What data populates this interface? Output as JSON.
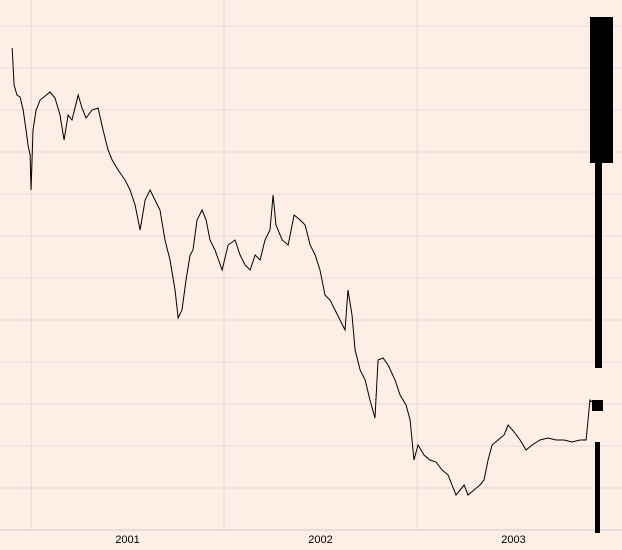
{
  "chart_data": {
    "type": "line",
    "x": [
      2000.902,
      2000.912,
      2000.927,
      2000.943,
      2000.959,
      2000.974,
      2000.984,
      2000.995,
      2001.0,
      2001.01,
      2001.026,
      2001.047,
      2001.073,
      2001.098,
      2001.124,
      2001.15,
      2001.171,
      2001.192,
      2001.212,
      2001.244,
      2001.264,
      2001.285,
      2001.316,
      2001.347,
      2001.373,
      2001.399,
      2001.42,
      2001.451,
      2001.487,
      2001.513,
      2001.539,
      2001.565,
      2001.591,
      2001.617,
      2001.642,
      2001.668,
      2001.694,
      2001.72,
      2001.746,
      2001.762,
      2001.782,
      2001.803,
      2001.824,
      2001.839,
      2001.86,
      2001.886,
      2001.907,
      2001.927,
      2001.953,
      2001.99,
      2002.021,
      2002.057,
      2002.083,
      2002.109,
      2002.135,
      2002.161,
      2002.187,
      2002.212,
      2002.238,
      2002.254,
      2002.269,
      2002.301,
      2002.332,
      2002.363,
      2002.394,
      2002.42,
      2002.446,
      2002.472,
      2002.497,
      2002.523,
      2002.549,
      2002.575,
      2002.601,
      2002.627,
      2002.642,
      2002.663,
      2002.679,
      2002.705,
      2002.731,
      2002.756,
      2002.782,
      2002.798,
      2002.824,
      2002.85,
      2002.886,
      2002.912,
      2002.943,
      2002.964,
      2002.984,
      2003.005,
      2003.036,
      2003.067,
      2003.098,
      2003.13,
      2003.161,
      2003.181,
      2003.202,
      2003.223,
      2003.244,
      2003.264,
      2003.295,
      2003.326,
      2003.347,
      2003.368,
      2003.389,
      2003.42,
      2003.451,
      2003.472,
      2003.503,
      2003.534,
      2003.565,
      2003.596,
      2003.637,
      2003.679,
      2003.72,
      2003.762,
      2003.803,
      2003.845,
      2003.876,
      2003.896,
      2003.907
    ],
    "series": [
      {
        "color": "#000000",
        "values": [
          482,
          445,
          435,
          433,
          420,
          400,
          385,
          375,
          340,
          400,
          420,
          430,
          434,
          438,
          432,
          415,
          390,
          415,
          410,
          435,
          422,
          412,
          420,
          422,
          400,
          380,
          370,
          360,
          350,
          340,
          325,
          300,
          330,
          340,
          330,
          320,
          290,
          270,
          240,
          212,
          220,
          250,
          275,
          280,
          310,
          320,
          310,
          290,
          280,
          260,
          285,
          290,
          275,
          265,
          260,
          275,
          270,
          290,
          300,
          335,
          305,
          290,
          285,
          315,
          310,
          305,
          285,
          275,
          260,
          235,
          230,
          220,
          210,
          200,
          240,
          215,
          180,
          160,
          150,
          130,
          112,
          170,
          172,
          165,
          150,
          135,
          125,
          110,
          70,
          85,
          75,
          70,
          68,
          60,
          55,
          45,
          35,
          40,
          45,
          35,
          40,
          45,
          50,
          70,
          85,
          90,
          95,
          105,
          98,
          90,
          80,
          85,
          90,
          92,
          90,
          90,
          88,
          90,
          90,
          130,
          128
        ]
      }
    ],
    "xlim": [
      2000.839,
      2004.062
    ],
    "ylim": [
      0,
      530
    ],
    "xticks": [
      {
        "value": 2001.5,
        "label": "2001"
      },
      {
        "value": 2002.5,
        "label": "2002"
      },
      {
        "value": 2003.5,
        "label": "2003"
      }
    ],
    "xgrid": [
      2001,
      2002,
      2003
    ],
    "yticks": [
      42,
      84,
      126,
      168,
      210,
      252,
      294,
      336,
      378,
      420,
      462,
      504
    ],
    "grid": true
  }
}
